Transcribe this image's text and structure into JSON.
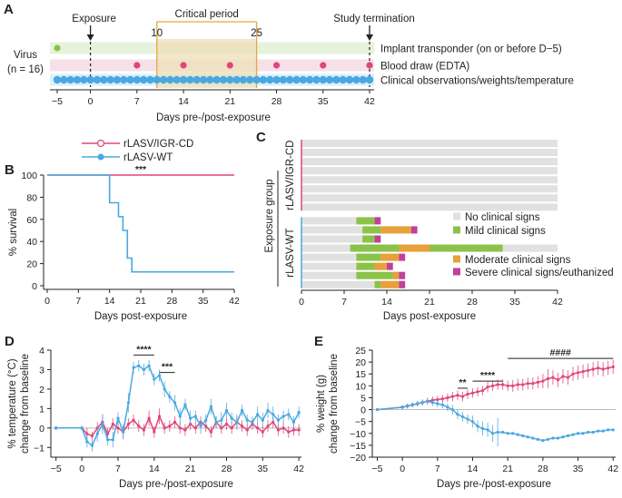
{
  "panel_labels": {
    "A": "A",
    "B": "B",
    "C": "C",
    "D": "D",
    "E": "E"
  },
  "colors": {
    "pink": "#e0457b",
    "blue": "#4aa8e0",
    "green": "#8bc34a",
    "orange": "#e8a03a",
    "magenta": "#c2409a",
    "gray": "#e1e1e1",
    "crit_fill": "#eedfb8",
    "crit_line": "#e5a642"
  },
  "chart_data": [
    {
      "type": "timeline",
      "panel": "A",
      "group_label_line1": "Virus",
      "group_label_line2": "(n = 16)",
      "exposure_label": "Exposure",
      "critical_label": "Critical period",
      "critical_start": 10,
      "critical_end": 25,
      "critical_start_label": "10",
      "critical_end_label": "25",
      "termination_label": "Study termination",
      "xlabel": "Days pre-/post-exposure",
      "xlim": [
        -6,
        42.5
      ],
      "ticks": [
        -5,
        0,
        7,
        14,
        21,
        28,
        35,
        42
      ],
      "tick_labels": [
        "−5",
        "0",
        "7",
        "14",
        "21",
        "28",
        "35",
        "42"
      ],
      "rows": [
        {
          "label": "Implant transponder (on or before D−5)",
          "days": [
            -5
          ]
        },
        {
          "label": "Blood draw (EDTA)",
          "days": [
            7,
            14,
            21,
            28,
            35,
            42
          ]
        },
        {
          "label": "Clinical observations/weights/temperature",
          "days": [
            -5,
            -4,
            -3,
            -2,
            -1,
            0,
            1,
            2,
            3,
            4,
            5,
            6,
            7,
            8,
            9,
            10,
            11,
            12,
            13,
            14,
            15,
            16,
            17,
            18,
            19,
            20,
            21,
            22,
            23,
            24,
            25,
            26,
            27,
            28,
            29,
            30,
            31,
            32,
            33,
            34,
            35,
            36,
            37,
            38,
            39,
            40,
            41,
            42
          ]
        }
      ]
    },
    {
      "type": "line",
      "panel": "B",
      "xlabel": "Days post-exposure",
      "ylabel": "% survival",
      "xlim": [
        0,
        42
      ],
      "ylim": [
        0,
        100
      ],
      "xticks": [
        0,
        7,
        14,
        21,
        28,
        35,
        42
      ],
      "yticks": [
        0,
        20,
        40,
        60,
        80,
        100
      ],
      "annotation": "***",
      "legend": [
        "rLASV/IGR-CD",
        "rLASV-WT"
      ],
      "series": [
        {
          "name": "rLASV/IGR-CD",
          "x": [
            0,
            42
          ],
          "y": [
            100,
            100
          ]
        },
        {
          "name": "rLASV-WT",
          "x": [
            0,
            14,
            14,
            16,
            16,
            17,
            17,
            18,
            18,
            19,
            19,
            42
          ],
          "y": [
            100,
            100,
            75,
            75,
            62.5,
            62.5,
            50,
            50,
            25,
            25,
            12.5,
            12.5
          ]
        }
      ]
    },
    {
      "type": "gantt",
      "panel": "C",
      "xlabel": "Days post-exposure",
      "ylabel": "Exposure group",
      "xlim": [
        0,
        42
      ],
      "xticks": [
        0,
        7,
        14,
        21,
        28,
        35,
        42
      ],
      "group_labels": [
        "rLASV/IGR-CD",
        "rLASV-WT"
      ],
      "legend": [
        "No clinical signs",
        "Mild clinical signs",
        "Moderate clinical signs",
        "Severe clinical signs/euthanized"
      ],
      "animals": [
        {
          "id": "1",
          "segments": []
        },
        {
          "id": "2",
          "segments": []
        },
        {
          "id": "3",
          "segments": []
        },
        {
          "id": "4",
          "segments": []
        },
        {
          "id": "5",
          "segments": []
        },
        {
          "id": "6",
          "segments": []
        },
        {
          "id": "7",
          "segments": []
        },
        {
          "id": "8",
          "segments": []
        },
        {
          "id": "9",
          "segments": [
            [
              9,
              12,
              "mild"
            ],
            [
              12,
              13,
              "severe"
            ]
          ],
          "end": 13
        },
        {
          "id": "10",
          "segments": [
            [
              10,
              13,
              "mild"
            ],
            [
              13,
              18,
              "moderate"
            ],
            [
              18,
              19,
              "severe"
            ]
          ],
          "end": 19
        },
        {
          "id": "11",
          "segments": [
            [
              10,
              12,
              "mild"
            ],
            [
              12,
              13,
              "severe"
            ]
          ],
          "end": 13
        },
        {
          "id": "12",
          "segments": [
            [
              8,
              16,
              "mild"
            ],
            [
              16,
              21,
              "moderate"
            ],
            [
              21,
              33,
              "mild"
            ]
          ],
          "end": 42
        },
        {
          "id": "13",
          "segments": [
            [
              9,
              13,
              "mild"
            ],
            [
              13,
              16,
              "moderate"
            ],
            [
              16,
              17,
              "severe"
            ]
          ],
          "end": 17
        },
        {
          "id": "14",
          "segments": [
            [
              9,
              12,
              "mild"
            ],
            [
              12,
              14,
              "moderate"
            ],
            [
              14,
              15,
              "severe"
            ]
          ],
          "end": 15
        },
        {
          "id": "15",
          "segments": [
            [
              9,
              15,
              "mild"
            ],
            [
              15,
              16,
              "moderate"
            ],
            [
              16,
              17,
              "severe"
            ]
          ],
          "end": 17
        },
        {
          "id": "16",
          "segments": [
            [
              12,
              13,
              "mild"
            ],
            [
              13,
              16,
              "moderate"
            ],
            [
              16,
              17,
              "severe"
            ]
          ],
          "end": 17
        }
      ]
    },
    {
      "type": "line",
      "panel": "D",
      "xlabel": "Days pre-/post-exposure",
      "ylabel_line1": "% temperature (°C)",
      "ylabel_line2": "change from baseline",
      "xlim": [
        -6,
        42.5
      ],
      "ylim": [
        -1.5,
        4
      ],
      "xticks": [
        -5,
        0,
        7,
        14,
        21,
        28,
        35,
        42
      ],
      "xtick_labels": [
        "−5",
        "0",
        "7",
        "14",
        "21",
        "28",
        "35",
        "42"
      ],
      "yticks": [
        -1,
        0,
        1,
        2,
        3,
        4
      ],
      "ytick_labels": [
        "−1",
        "0",
        "1",
        "2",
        "3",
        "4"
      ],
      "annotations": [
        {
          "text": "****",
          "x1": 10,
          "x2": 14,
          "y": 3.75
        },
        {
          "text": "***",
          "x1": 15,
          "x2": 18,
          "y": 2.85
        }
      ],
      "series": [
        {
          "name": "rLASV/IGR-CD",
          "x": [
            -5,
            0,
            1,
            2,
            3,
            4,
            5,
            6,
            7,
            8,
            9,
            10,
            11,
            12,
            13,
            14,
            15,
            16,
            17,
            18,
            19,
            20,
            21,
            22,
            23,
            24,
            25,
            26,
            27,
            28,
            29,
            30,
            31,
            32,
            33,
            34,
            35,
            36,
            37,
            38,
            39,
            40,
            41,
            42
          ],
          "y": [
            0,
            0,
            -0.3,
            -0.4,
            0,
            0.3,
            -0.3,
            0.2,
            0,
            -0.2,
            0.2,
            0.4,
            0.1,
            -0.1,
            0.5,
            -0.2,
            0.6,
            0,
            0.1,
            0.3,
            0,
            -0.1,
            0.2,
            0,
            0.3,
            0.1,
            -0.2,
            0.3,
            0,
            0.2,
            0,
            0.3,
            0.1,
            -0.1,
            0.2,
            0,
            -0.2,
            0.1,
            0.3,
            -0.1,
            0,
            -0.2,
            -0.1,
            -0.1
          ],
          "err": [
            0.1,
            0.1,
            0.3,
            0.2,
            0.3,
            0.4,
            0.3,
            0.3,
            0.3,
            0.3,
            0.3,
            0.3,
            0.3,
            0.3,
            0.4,
            0.3,
            0.4,
            0.3,
            0.3,
            0.3,
            0.3,
            0.3,
            0.3,
            0.3,
            0.3,
            0.3,
            0.3,
            0.3,
            0.3,
            0.3,
            0.3,
            0.3,
            0.3,
            0.3,
            0.3,
            0.3,
            0.3,
            0.3,
            0.3,
            0.3,
            0.3,
            0.3,
            0.3,
            0.3
          ]
        },
        {
          "name": "rLASV-WT",
          "x": [
            -5,
            0,
            1,
            2,
            3,
            4,
            5,
            6,
            7,
            8,
            9,
            10,
            11,
            12,
            13,
            14,
            15,
            16,
            17,
            18,
            19,
            20,
            21,
            22,
            23,
            24,
            25,
            26,
            27,
            28,
            29,
            30,
            31,
            32,
            33,
            34,
            35,
            36,
            37,
            38,
            39,
            40,
            41,
            42
          ],
          "y": [
            0,
            0,
            -0.7,
            -0.9,
            -0.3,
            0.2,
            -0.6,
            -0.6,
            0.5,
            -0.2,
            1.3,
            3.1,
            3.2,
            3.0,
            3.2,
            2.5,
            2.7,
            2.0,
            1.6,
            1.3,
            0.6,
            1.2,
            0.5,
            0.6,
            0.1,
            0.4,
            1.1,
            0.3,
            0.4,
            0.9,
            0.5,
            0.3,
            0.9,
            0.4,
            0.3,
            0.7,
            0.4,
            0.9,
            0.7,
            0.4,
            0.6,
            0.7,
            0.3,
            0.8
          ],
          "err": [
            0.1,
            0.1,
            0.3,
            0.3,
            0.4,
            0.5,
            0.3,
            0.4,
            0.3,
            0.4,
            0.5,
            0.3,
            0.3,
            0.3,
            0.3,
            0.3,
            0.3,
            0.4,
            0.3,
            0.4,
            0.4,
            0.3,
            0.4,
            0.3,
            0.4,
            0.3,
            0.4,
            0.3,
            0.4,
            0.4,
            0.3,
            0.4,
            0.3,
            0.3,
            0.3,
            0.4,
            0.4,
            0.4,
            0.4,
            0.3,
            0.3,
            0.3,
            0.3,
            0.3
          ]
        }
      ]
    },
    {
      "type": "line",
      "panel": "E",
      "xlabel": "Days pre-/post-exposure",
      "ylabel_line1": "% weight (g)",
      "ylabel_line2": "change from baseline",
      "xlim": [
        -6,
        42.5
      ],
      "ylim": [
        -20,
        25
      ],
      "xticks": [
        -5,
        0,
        7,
        14,
        21,
        28,
        35,
        42
      ],
      "xtick_labels": [
        "−5",
        "0",
        "7",
        "14",
        "21",
        "28",
        "35",
        "42"
      ],
      "yticks": [
        -20,
        -15,
        -10,
        -5,
        0,
        5,
        10,
        15,
        20,
        25
      ],
      "ytick_labels": [
        "−20",
        "−15",
        "−10",
        "−5",
        "0",
        "5",
        "10",
        "15",
        "20",
        "25"
      ],
      "annotations": [
        {
          "text": "**",
          "x1": 11,
          "x2": 13,
          "y": 9
        },
        {
          "text": "****",
          "x1": 14,
          "x2": 20,
          "y": 12
        },
        {
          "text": "####",
          "x1": 21,
          "x2": 42,
          "y": 21.5
        }
      ],
      "series": [
        {
          "name": "rLASV/IGR-CD",
          "x": [
            -5,
            0,
            1,
            2,
            3,
            4,
            5,
            6,
            7,
            8,
            9,
            10,
            11,
            12,
            13,
            14,
            15,
            16,
            17,
            18,
            19,
            20,
            21,
            22,
            23,
            24,
            25,
            26,
            27,
            28,
            29,
            30,
            31,
            32,
            33,
            34,
            35,
            36,
            37,
            38,
            39,
            40,
            41,
            42
          ],
          "y": [
            0,
            1,
            1.5,
            2,
            2.5,
            3,
            3.5,
            4,
            4.2,
            4.5,
            5,
            5.5,
            6,
            5.5,
            6.5,
            7,
            7.5,
            8,
            9.5,
            10,
            10.5,
            10.5,
            10,
            10,
            10.5,
            10.5,
            11,
            11,
            11.5,
            12,
            13,
            13.5,
            12.5,
            14,
            13.5,
            15,
            15.5,
            16,
            16.5,
            17,
            17.5,
            17,
            17.5,
            18
          ],
          "err": [
            0.3,
            0.8,
            1,
            1,
            1.2,
            1.3,
            1.5,
            1.5,
            1.6,
            1.7,
            1.8,
            2,
            2,
            2,
            2,
            2,
            2,
            2,
            2.2,
            2.2,
            2.2,
            2.2,
            2.2,
            2.5,
            2.5,
            2.5,
            2.5,
            2.5,
            2.5,
            3,
            4,
            3,
            3,
            3,
            3,
            3,
            3,
            3,
            3,
            3,
            3,
            3,
            3,
            3
          ]
        },
        {
          "name": "rLASV-WT",
          "x": [
            -5,
            0,
            1,
            2,
            3,
            4,
            5,
            6,
            7,
            8,
            9,
            10,
            11,
            12,
            13,
            14,
            15,
            16,
            17,
            18,
            19,
            20,
            21,
            22,
            23,
            24,
            25,
            26,
            27,
            28,
            29,
            30,
            31,
            32,
            33,
            34,
            35,
            36,
            37,
            38,
            39,
            40,
            41,
            42
          ],
          "y": [
            0,
            1,
            1.5,
            2,
            2.5,
            3,
            3.5,
            3,
            2.5,
            2,
            1,
            0,
            -2,
            -3,
            -4,
            -5,
            -7,
            -8,
            -8.5,
            -10,
            -9.5,
            -9.5,
            -10,
            -10,
            -10.5,
            -11,
            -11.5,
            -12,
            -12.5,
            -13,
            -12.5,
            -12,
            -12,
            -11.5,
            -11,
            -10.5,
            -10,
            -10,
            -9.5,
            -9.5,
            -9,
            -9,
            -8.5,
            -8.5
          ],
          "err": [
            0.3,
            0.8,
            1,
            1,
            1,
            1.2,
            1.2,
            1.5,
            1.5,
            1.5,
            1.5,
            2,
            2,
            2,
            2,
            2.5,
            2.5,
            3,
            3,
            3.5,
            6,
            0.5,
            0.5,
            0.5,
            0.5,
            0.5,
            0.5,
            0.5,
            0.5,
            0.5,
            0.5,
            0.5,
            0.5,
            0.5,
            0.5,
            0.5,
            0.5,
            0.5,
            0.5,
            0.5,
            0.5,
            0.5,
            0.5,
            0.5
          ]
        }
      ]
    }
  ]
}
